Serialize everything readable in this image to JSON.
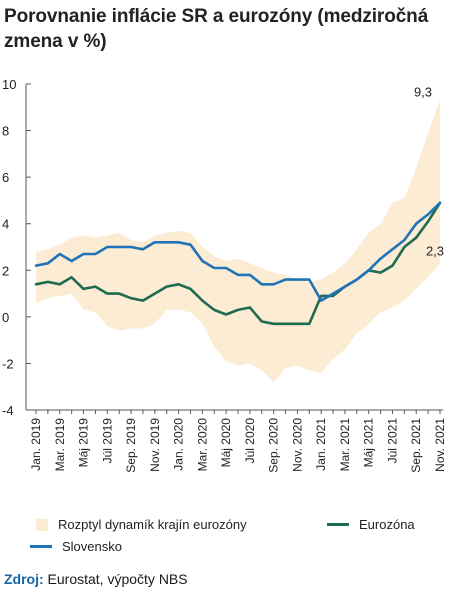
{
  "chart_data": {
    "type": "line",
    "title": "Porovnanie inflácie SR a eurozóny (medziročná zmena v %)",
    "ylim": [
      -4,
      10
    ],
    "yticks": [
      -4,
      -2,
      0,
      2,
      4,
      6,
      8,
      10
    ],
    "ytick_labels": [
      "-4",
      "-2",
      "0",
      "2",
      "4",
      "6",
      "8",
      "10"
    ],
    "x": [
      "Jan. 2019",
      "Feb. 2019",
      "Mar. 2019",
      "Apr. 2019",
      "Máj 2019",
      "Jún 2019",
      "Júl 2019",
      "Aug. 2019",
      "Sep. 2019",
      "Okt. 2019",
      "Nov. 2019",
      "Dec. 2019",
      "Jan. 2020",
      "Feb. 2020",
      "Mar. 2020",
      "Apr. 2020",
      "Máj 2020",
      "Jún 2020",
      "Júl 2020",
      "Aug. 2020",
      "Sep. 2020",
      "Okt. 2020",
      "Nov. 2020",
      "Dec. 2020",
      "Jan. 2021",
      "Feb. 2021",
      "Mar. 2021",
      "Apr. 2021",
      "Máj 2021",
      "Jún 2021",
      "Júl 2021",
      "Aug. 2021",
      "Sep. 2021",
      "Okt. 2021",
      "Nov. 2021"
    ],
    "xtick_labels": [
      "Jan. 2019",
      "Mar. 2019",
      "Máj 2019",
      "Júl 2019",
      "Sep. 2019",
      "Nov. 2019",
      "Jan. 2020",
      "Mar. 2020",
      "Máj 2020",
      "Júl 2020",
      "Sep. 2020",
      "Nov. 2020",
      "Jan. 2021",
      "Mar. 2021",
      "Máj 2021",
      "Júl 2021",
      "Sep. 2021",
      "Nov. 2021"
    ],
    "range": {
      "name": "Rozptyl dynamík krajín eurozóny",
      "color": "#fcecd4",
      "max": [
        2.8,
        2.9,
        3.1,
        3.4,
        3.5,
        3.4,
        3.5,
        3.6,
        3.3,
        3.2,
        3.5,
        3.6,
        3.7,
        3.6,
        3.0,
        2.6,
        2.4,
        2.5,
        2.3,
        2.1,
        1.9,
        1.8,
        1.6,
        1.5,
        1.6,
        1.9,
        2.3,
        2.9,
        3.6,
        4.0,
        4.9,
        5.1,
        6.4,
        7.9,
        9.3
      ],
      "min": [
        0.6,
        0.8,
        0.9,
        1.0,
        0.3,
        0.2,
        -0.4,
        -0.6,
        -0.5,
        -0.5,
        -0.3,
        0.3,
        0.3,
        0.2,
        -0.3,
        -1.3,
        -1.9,
        -2.1,
        -2.0,
        -2.3,
        -2.8,
        -2.2,
        -2.1,
        -2.3,
        -2.4,
        -1.8,
        -1.4,
        -0.7,
        -0.3,
        0.2,
        0.4,
        0.7,
        1.2,
        1.7,
        2.3
      ]
    },
    "series": [
      {
        "name": "Slovensko",
        "color": "#1f73b7",
        "values": [
          2.2,
          2.3,
          2.7,
          2.4,
          2.7,
          2.7,
          3.0,
          3.0,
          3.0,
          2.9,
          3.2,
          3.2,
          3.2,
          3.1,
          2.4,
          2.1,
          2.1,
          1.8,
          1.8,
          1.4,
          1.4,
          1.6,
          1.6,
          1.6,
          0.7,
          1.0,
          1.3,
          1.6,
          2.0,
          2.5,
          2.9,
          3.3,
          4.0,
          4.4,
          4.9
        ]
      },
      {
        "name": "Eurozóna",
        "color": "#1e6b4f",
        "values": [
          1.4,
          1.5,
          1.4,
          1.7,
          1.2,
          1.3,
          1.0,
          1.0,
          0.8,
          0.7,
          1.0,
          1.3,
          1.4,
          1.2,
          0.7,
          0.3,
          0.1,
          0.3,
          0.4,
          -0.2,
          -0.3,
          -0.3,
          -0.3,
          -0.3,
          0.9,
          0.9,
          1.3,
          1.6,
          2.0,
          1.9,
          2.2,
          3.0,
          3.4,
          4.1,
          4.9
        ]
      }
    ],
    "annotations": [
      {
        "text": "9,3",
        "x": "Nov. 2021",
        "y": 9.3
      },
      {
        "text": "2,3",
        "x": "Nov. 2021",
        "y": 2.3
      }
    ],
    "grid": false,
    "legend": "bottom"
  },
  "legend": {
    "range_label": "Rozptyl dynamík krajín eurozóny",
    "sk_label": "Slovensko",
    "ez_label": "Eurozóna"
  },
  "source": {
    "label": "Zdroj:",
    "text": "Eurostat, výpočty NBS"
  }
}
